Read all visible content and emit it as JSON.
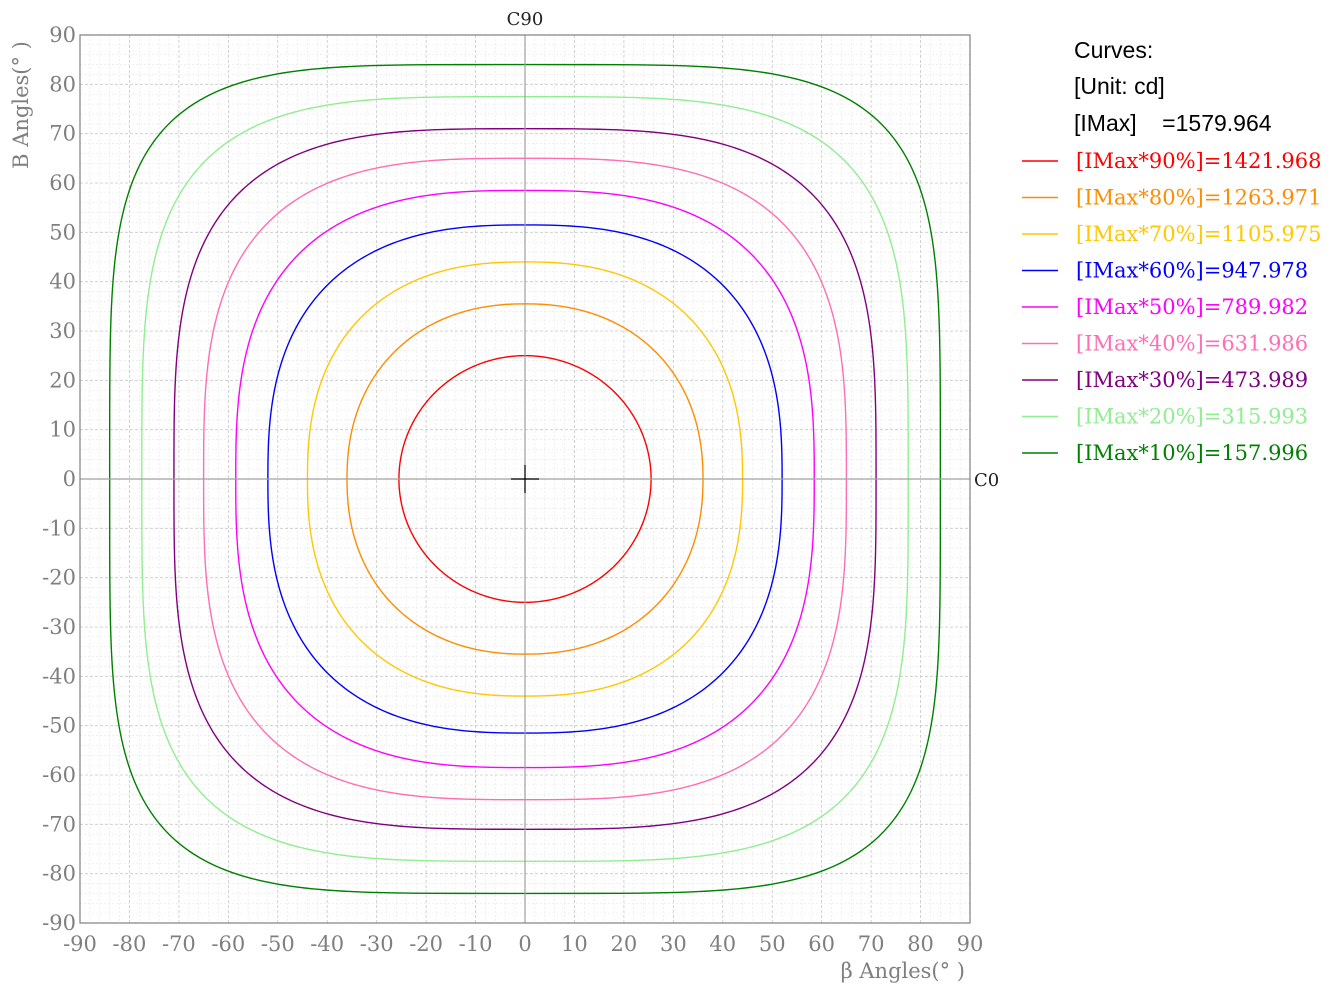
{
  "chart_data": {
    "type": "line",
    "title": "",
    "xlabel": "β Angles(° )",
    "ylabel": "B Angles(° )",
    "xlim": [
      -90,
      90
    ],
    "ylim": [
      -90,
      90
    ],
    "xticks": [
      "-90",
      "-80",
      "-70",
      "-60",
      "-50",
      "-40",
      "-30",
      "-20",
      "-10",
      "0",
      "10",
      "20",
      "30",
      "40",
      "50",
      "60",
      "70",
      "80",
      "90"
    ],
    "yticks": [
      "90",
      "80",
      "70",
      "60",
      "50",
      "40",
      "30",
      "20",
      "10",
      "0",
      "-10",
      "-20",
      "-30",
      "-40",
      "-50",
      "-60",
      "-70",
      "-80",
      "-90"
    ],
    "grid": true,
    "axis_labels": {
      "top": "C90",
      "right": "C0"
    },
    "legend": {
      "placement": "right",
      "header": [
        "Curves:",
        "[Unit: cd]",
        "[IMax]    =1579.964"
      ]
    },
    "series": [
      {
        "name": "[IMax*90%]=1421.968",
        "color": "#ff0000",
        "radius_x": 25.5,
        "radius_y": 25.0,
        "shape_exponent": 2.0
      },
      {
        "name": "[IMax*80%]=1263.971",
        "color": "#ff8c00",
        "radius_x": 36.0,
        "radius_y": 35.5,
        "shape_exponent": 2.2
      },
      {
        "name": "[IMax*70%]=1105.975",
        "color": "#ffc800",
        "radius_x": 44.0,
        "radius_y": 44.0,
        "shape_exponent": 2.4
      },
      {
        "name": "[IMax*60%]=947.978",
        "color": "#0000ff",
        "radius_x": 52.0,
        "radius_y": 51.5,
        "shape_exponent": 2.6
      },
      {
        "name": "[IMax*50%]=789.982",
        "color": "#ff00ff",
        "radius_x": 58.5,
        "radius_y": 58.5,
        "shape_exponent": 2.8
      },
      {
        "name": "[IMax*40%]=631.986",
        "color": "#ff6eb4",
        "radius_x": 65.0,
        "radius_y": 65.0,
        "shape_exponent": 3.1
      },
      {
        "name": "[IMax*30%]=473.989",
        "color": "#800080",
        "radius_x": 71.0,
        "radius_y": 71.0,
        "shape_exponent": 3.4
      },
      {
        "name": "[IMax*20%]=315.993",
        "color": "#90ee90",
        "radius_x": 77.5,
        "radius_y": 77.5,
        "shape_exponent": 3.8
      },
      {
        "name": "[IMax*10%]=157.996",
        "color": "#008000",
        "radius_x": 84.0,
        "radius_y": 84.0,
        "shape_exponent": 4.5
      }
    ]
  }
}
